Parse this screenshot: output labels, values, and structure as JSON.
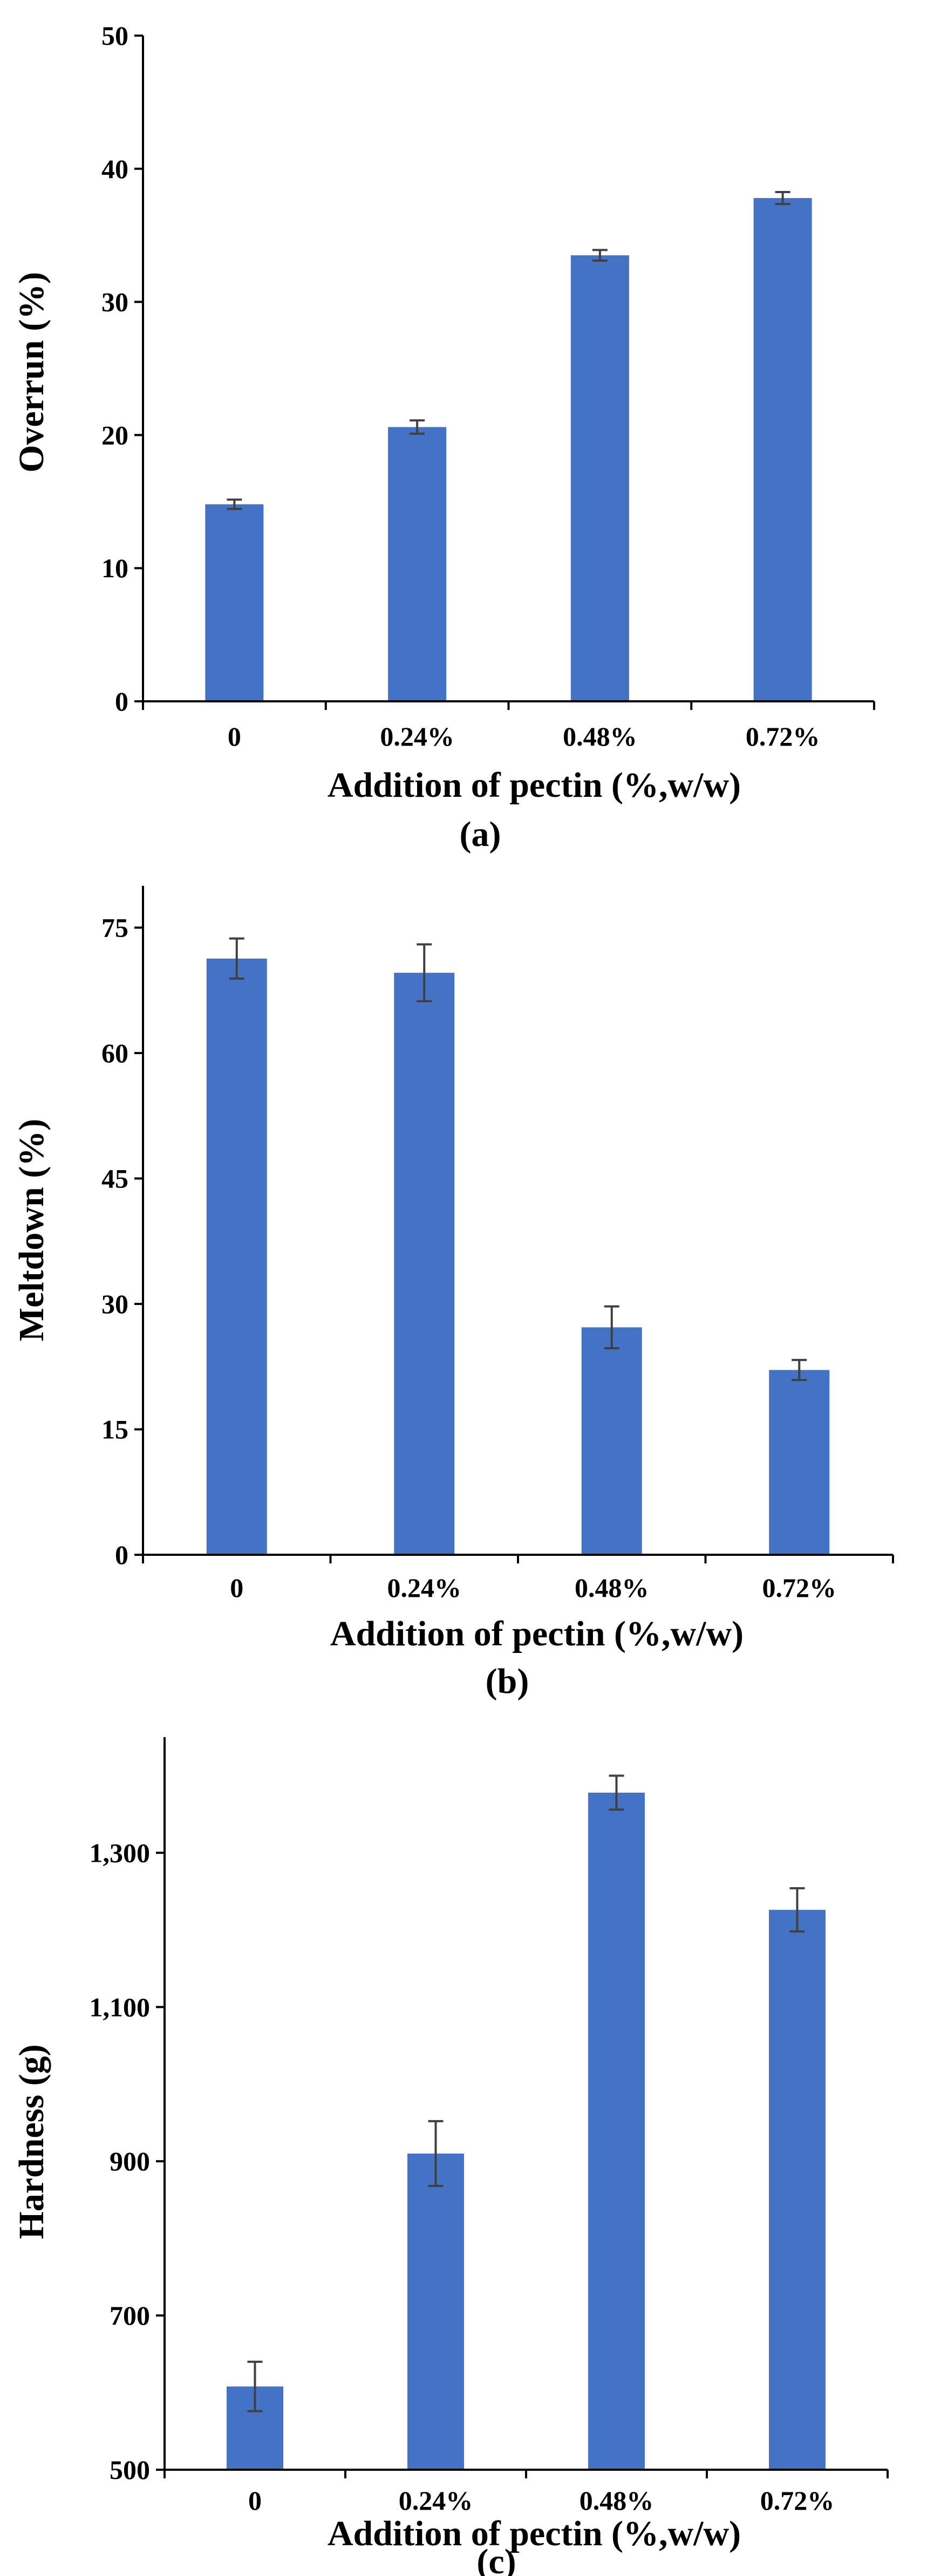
{
  "colors": {
    "bar": "#4472C4",
    "axis": "#000000",
    "error_bar": "#404040"
  },
  "chart_data": [
    {
      "type": "bar",
      "panel_label": "(a)",
      "categories": [
        "0",
        "0.24%",
        "0.48%",
        "0.72%"
      ],
      "values": [
        14.8,
        20.6,
        33.5,
        37.8
      ],
      "errors": [
        0.35,
        0.5,
        0.4,
        0.45
      ],
      "xlabel": "Addition of pectin (%,w/w)",
      "ylabel": "Overrun (%)",
      "ylim": [
        0,
        50
      ],
      "yticks": [
        0,
        10,
        20,
        30,
        40,
        50
      ],
      "ytick_labels": [
        "0",
        "10",
        "20",
        "30",
        "40",
        "50"
      ],
      "grid": false
    },
    {
      "type": "bar",
      "panel_label": "(b)",
      "categories": [
        "0",
        "0.24%",
        "0.48%",
        "0.72%"
      ],
      "values": [
        71.3,
        69.6,
        27.2,
        22.1
      ],
      "errors": [
        2.4,
        3.4,
        2.5,
        1.2
      ],
      "xlabel": "Addition of pectin (%,w/w)",
      "ylabel": "Meltdown (%)",
      "ylim": [
        0,
        80
      ],
      "yticks": [
        0,
        15,
        30,
        45,
        60,
        75
      ],
      "ytick_labels": [
        "0",
        "15",
        "30",
        "45",
        "60",
        "75"
      ],
      "grid": false
    },
    {
      "type": "bar",
      "panel_label": "(c)",
      "categories": [
        "0",
        "0.24%",
        "0.48%",
        "0.72%"
      ],
      "values": [
        608,
        910,
        1378,
        1226
      ],
      "errors": [
        32,
        42,
        22,
        28
      ],
      "xlabel": "Addition of pectin (%,w/w)",
      "ylabel": "Hardness (g)",
      "ylim": [
        500,
        1450
      ],
      "yticks": [
        500,
        700,
        900,
        1100,
        1300
      ],
      "ytick_labels": [
        "500",
        "700",
        "900",
        "1,100",
        "1,300"
      ],
      "grid": false
    }
  ]
}
